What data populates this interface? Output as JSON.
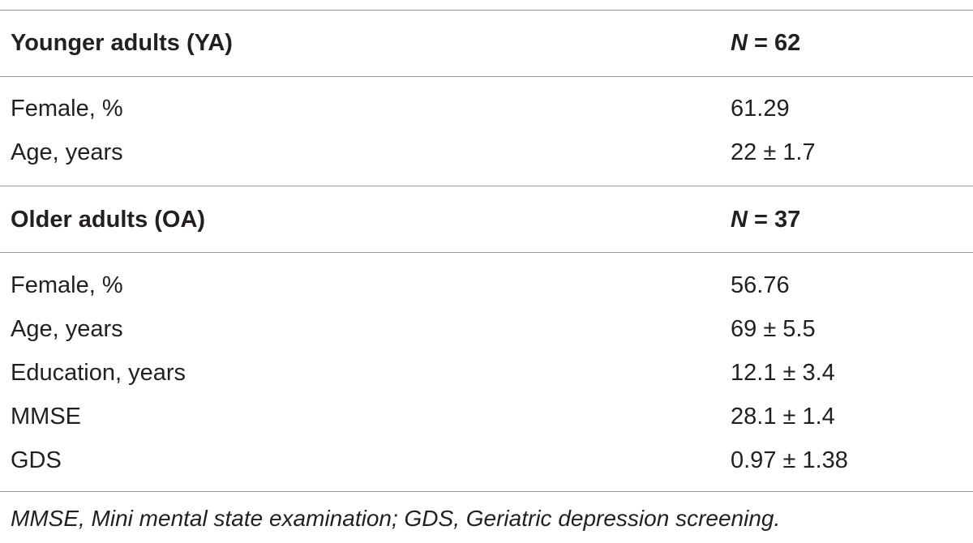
{
  "sections": [
    {
      "title": "Younger adults (YA)",
      "n_label": "N",
      "n_rest": " = 62",
      "rows": [
        {
          "label": "Female, %",
          "value": "61.29"
        },
        {
          "label": "Age, years",
          "value": "22 ± 1.7"
        }
      ]
    },
    {
      "title": "Older adults (OA)",
      "n_label": "N",
      "n_rest": " = 37",
      "rows": [
        {
          "label": "Female, %",
          "value": "56.76"
        },
        {
          "label": "Age, years",
          "value": "69 ± 5.5"
        },
        {
          "label": "Education, years",
          "value": "12.1 ± 3.4"
        },
        {
          "label": "MMSE",
          "value": "28.1 ± 1.4"
        },
        {
          "label": "GDS",
          "value": "0.97 ± 1.38"
        }
      ]
    }
  ],
  "footnote": "MMSE, Mini mental state examination; GDS, Geriatric depression screening."
}
